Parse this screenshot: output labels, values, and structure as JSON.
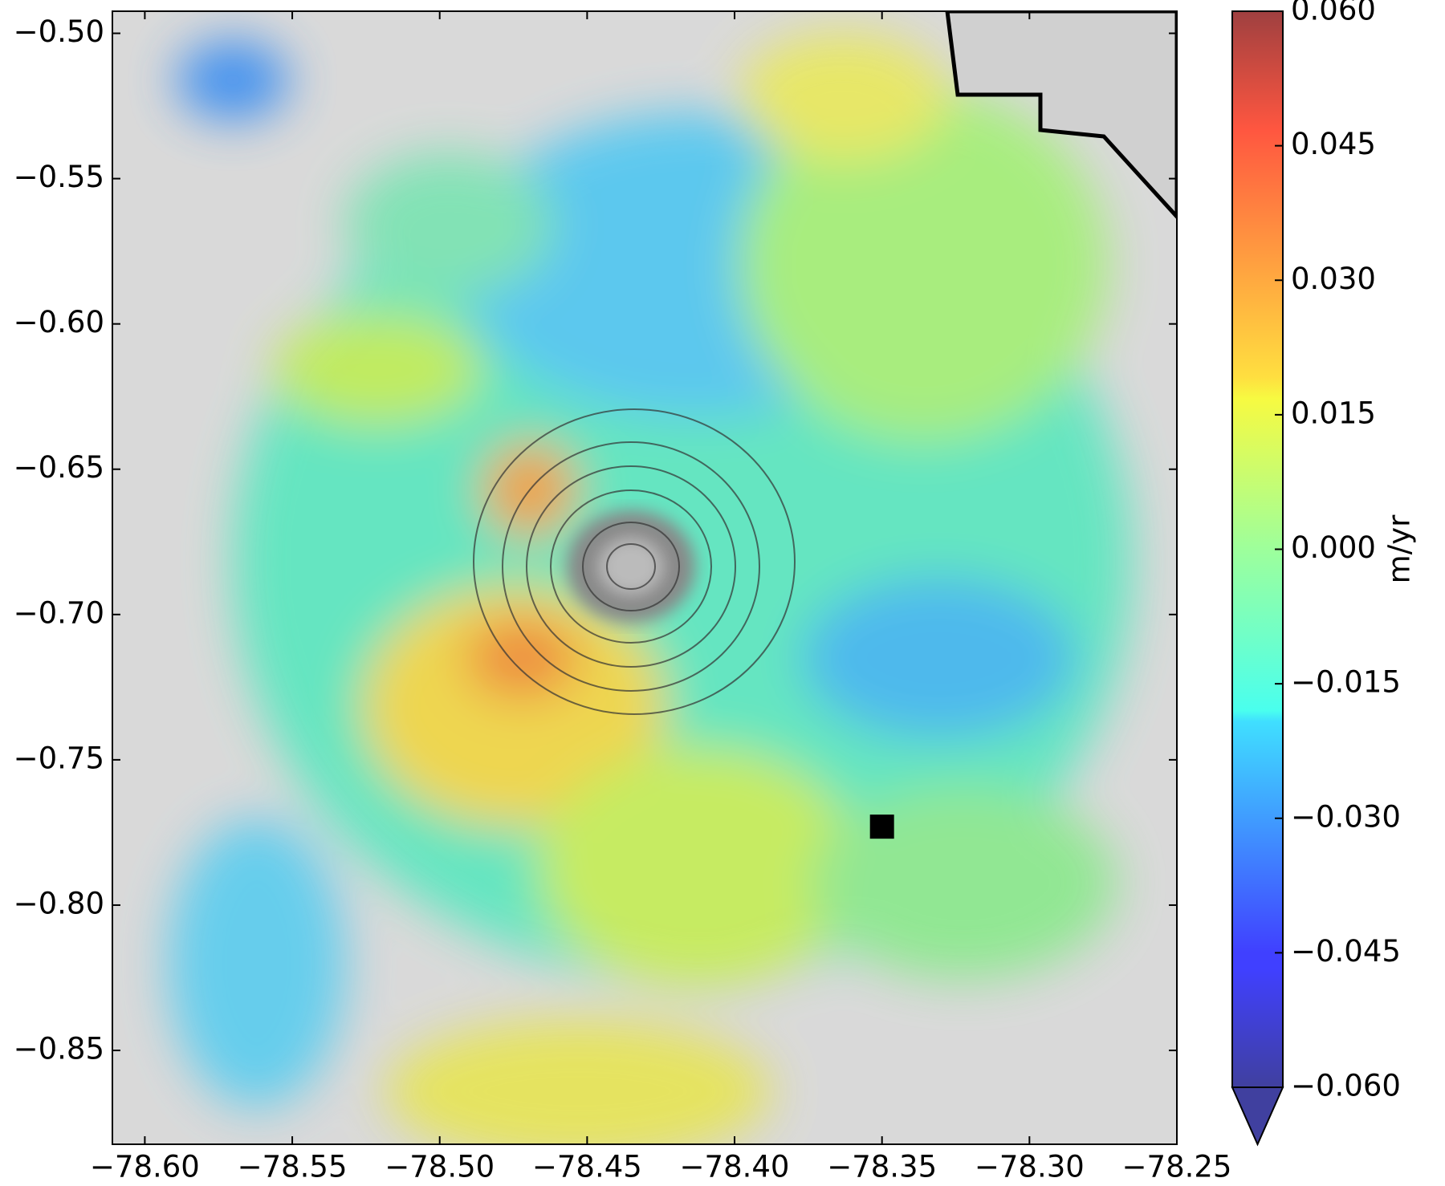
{
  "chart_data": {
    "type": "map",
    "xlim": [
      -78.611,
      -78.25
    ],
    "ylim": [
      -0.8823,
      -0.4924
    ],
    "xticks": [
      {
        "value": -78.6,
        "label": "−78.60"
      },
      {
        "value": -78.55,
        "label": "−78.55"
      },
      {
        "value": -78.5,
        "label": "−78.50"
      },
      {
        "value": -78.45,
        "label": "−78.45"
      },
      {
        "value": -78.4,
        "label": "−78.40"
      },
      {
        "value": -78.35,
        "label": "−78.35"
      },
      {
        "value": -78.3,
        "label": "−78.30"
      },
      {
        "value": -78.25,
        "label": "−78.25"
      }
    ],
    "yticks": [
      {
        "value": -0.5,
        "label": "−0.50"
      },
      {
        "value": -0.55,
        "label": "−0.55"
      },
      {
        "value": -0.6,
        "label": "−0.60"
      },
      {
        "value": -0.65,
        "label": "−0.65"
      },
      {
        "value": -0.7,
        "label": "−0.70"
      },
      {
        "value": -0.75,
        "label": "−0.75"
      },
      {
        "value": -0.8,
        "label": "−0.80"
      },
      {
        "value": -0.85,
        "label": "−0.85"
      }
    ],
    "reference_point": {
      "x": -78.35,
      "y": -0.773,
      "color": "#000000"
    },
    "colorbar": {
      "label": "m/yr",
      "colormap": "jet",
      "lim": [
        -0.06,
        0.06
      ],
      "extend": "min",
      "ticks": [
        {
          "value": 0.06,
          "label": "0.060"
        },
        {
          "value": 0.045,
          "label": "0.045"
        },
        {
          "value": 0.03,
          "label": "0.030"
        },
        {
          "value": 0.015,
          "label": "0.015"
        },
        {
          "value": 0,
          "label": "0.000"
        },
        {
          "value": -0.015,
          "label": "−0.015"
        },
        {
          "value": -0.03,
          "label": "−0.030"
        },
        {
          "value": -0.045,
          "label": "−0.045"
        },
        {
          "value": -0.06,
          "label": "−0.060"
        }
      ]
    }
  }
}
